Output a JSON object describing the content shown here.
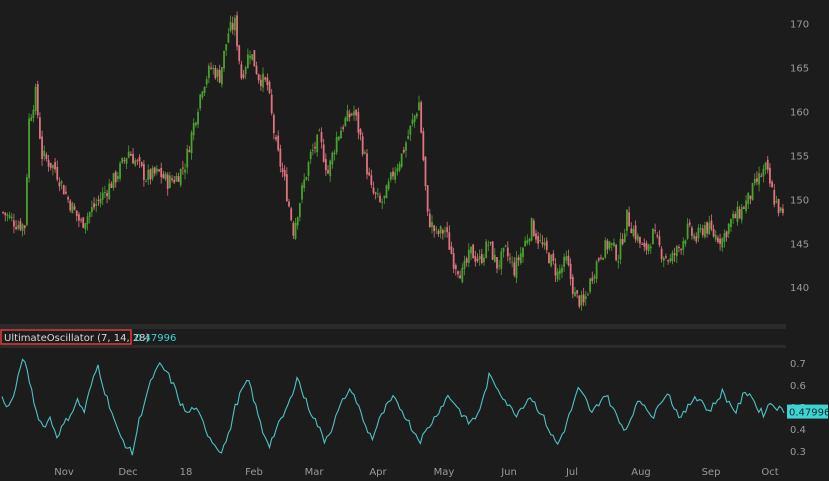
{
  "colors": {
    "frame": "#2b2b2b",
    "panel": "#1c1c1c",
    "grid": "#2a2a2a",
    "up": "#4aa12f",
    "down": "#e0737f",
    "oscillator": "#4fc2c4",
    "label_box": "#e03d3d",
    "tag_bg": "#3fd4d4"
  },
  "indicator": {
    "name": "UltimateOscillator (7, 14, 28)",
    "value": "0.47996",
    "last_tag": "0.47996"
  },
  "chart_data": [
    {
      "type": "candlestick",
      "ylim": [
        136.5,
        172
      ],
      "y_ticks": [
        "140",
        "145",
        "150",
        "155",
        "160",
        "165",
        "170"
      ],
      "x_ticks": [
        "Nov",
        "Dec",
        "18",
        "Feb",
        "Mar",
        "Apr",
        "May",
        "Jun",
        "Jul",
        "Aug",
        "Sep",
        "Oct"
      ],
      "bars": 260,
      "close_anchors": [
        [
          0,
          148.5
        ],
        [
          6,
          147.3
        ],
        [
          10,
          147
        ],
        [
          12,
          159
        ],
        [
          15,
          162
        ],
        [
          18,
          155
        ],
        [
          24,
          153.5
        ],
        [
          30,
          150
        ],
        [
          36,
          147.2
        ],
        [
          40,
          148.5
        ],
        [
          46,
          150.5
        ],
        [
          52,
          152.5
        ],
        [
          58,
          155.5
        ],
        [
          62,
          154
        ],
        [
          66,
          152.5
        ],
        [
          72,
          153
        ],
        [
          76,
          152
        ],
        [
          80,
          152.5
        ],
        [
          84,
          154
        ],
        [
          88,
          158.5
        ],
        [
          92,
          163
        ],
        [
          96,
          165
        ],
        [
          100,
          164
        ],
        [
          104,
          169
        ],
        [
          107,
          170
        ],
        [
          110,
          164
        ],
        [
          114,
          167
        ],
        [
          118,
          164
        ],
        [
          122,
          163
        ],
        [
          126,
          156
        ],
        [
          130,
          152
        ],
        [
          134,
          146.5
        ],
        [
          138,
          151
        ],
        [
          142,
          155
        ],
        [
          146,
          157
        ],
        [
          150,
          153
        ],
        [
          154,
          157
        ],
        [
          158,
          159
        ],
        [
          162,
          160
        ],
        [
          166,
          156
        ],
        [
          170,
          151
        ],
        [
          174,
          149.5
        ],
        [
          176,
          150
        ],
        [
          180,
          153
        ],
        [
          184,
          155
        ],
        [
          188,
          158
        ],
        [
          192,
          161
        ],
        [
          196,
          148
        ],
        [
          200,
          146
        ],
        [
          204,
          146.5
        ],
        [
          208,
          143
        ],
        [
          212,
          141.5
        ],
        [
          216,
          144
        ],
        [
          220,
          143
        ],
        [
          224,
          145
        ],
        [
          228,
          142.5
        ],
        [
          232,
          144
        ],
        [
          236,
          142
        ],
        [
          240,
          144.5
        ],
        [
          244,
          147
        ],
        [
          248,
          145
        ],
        [
          252,
          143.5
        ],
        [
          256,
          141.5
        ],
        [
          260,
          143
        ],
        [
          264,
          139
        ],
        [
          268,
          138
        ],
        [
          272,
          141.5
        ],
        [
          276,
          144
        ],
        [
          280,
          145
        ],
        [
          284,
          143.5
        ],
        [
          288,
          148
        ],
        [
          292,
          146
        ],
        [
          296,
          144
        ],
        [
          300,
          146
        ],
        [
          304,
          144
        ],
        [
          308,
          143
        ],
        [
          312,
          144.5
        ],
        [
          316,
          146.5
        ],
        [
          320,
          145.5
        ],
        [
          324,
          147
        ],
        [
          328,
          146
        ],
        [
          332,
          145.5
        ],
        [
          336,
          147.5
        ],
        [
          340,
          148.5
        ],
        [
          344,
          150
        ],
        [
          348,
          152
        ],
        [
          352,
          153.5
        ],
        [
          356,
          150
        ],
        [
          360,
          148
        ]
      ],
      "osc_anchors": [
        [
          0,
          0.54
        ],
        [
          3,
          0.5
        ],
        [
          6,
          0.58
        ],
        [
          9,
          0.73
        ],
        [
          12,
          0.62
        ],
        [
          15,
          0.48
        ],
        [
          18,
          0.41
        ],
        [
          21,
          0.45
        ],
        [
          24,
          0.37
        ],
        [
          27,
          0.42
        ],
        [
          30,
          0.47
        ],
        [
          33,
          0.53
        ],
        [
          36,
          0.48
        ],
        [
          39,
          0.6
        ],
        [
          42,
          0.69
        ],
        [
          45,
          0.57
        ],
        [
          48,
          0.48
        ],
        [
          51,
          0.38
        ],
        [
          54,
          0.33
        ],
        [
          57,
          0.29
        ],
        [
          60,
          0.44
        ],
        [
          63,
          0.55
        ],
        [
          66,
          0.64
        ],
        [
          69,
          0.69
        ],
        [
          72,
          0.66
        ],
        [
          75,
          0.6
        ],
        [
          78,
          0.52
        ],
        [
          81,
          0.47
        ],
        [
          84,
          0.5
        ],
        [
          87,
          0.45
        ],
        [
          90,
          0.38
        ],
        [
          93,
          0.33
        ],
        [
          96,
          0.3
        ],
        [
          99,
          0.37
        ],
        [
          102,
          0.5
        ],
        [
          105,
          0.58
        ],
        [
          108,
          0.62
        ],
        [
          111,
          0.5
        ],
        [
          114,
          0.39
        ],
        [
          117,
          0.33
        ],
        [
          120,
          0.4
        ],
        [
          123,
          0.46
        ],
        [
          126,
          0.53
        ],
        [
          129,
          0.64
        ],
        [
          132,
          0.55
        ],
        [
          135,
          0.48
        ],
        [
          138,
          0.42
        ],
        [
          141,
          0.35
        ],
        [
          144,
          0.4
        ],
        [
          147,
          0.48
        ],
        [
          150,
          0.55
        ],
        [
          153,
          0.58
        ],
        [
          156,
          0.5
        ],
        [
          159,
          0.41
        ],
        [
          162,
          0.36
        ],
        [
          165,
          0.44
        ],
        [
          168,
          0.5
        ],
        [
          171,
          0.54
        ],
        [
          174,
          0.5
        ],
        [
          177,
          0.45
        ],
        [
          180,
          0.39
        ],
        [
          183,
          0.35
        ],
        [
          186,
          0.4
        ],
        [
          189,
          0.45
        ],
        [
          192,
          0.5
        ],
        [
          195,
          0.55
        ],
        [
          198,
          0.52
        ],
        [
          201,
          0.47
        ],
        [
          204,
          0.43
        ],
        [
          207,
          0.45
        ],
        [
          210,
          0.52
        ],
        [
          213,
          0.64
        ],
        [
          216,
          0.6
        ],
        [
          219,
          0.55
        ],
        [
          222,
          0.5
        ],
        [
          225,
          0.47
        ],
        [
          228,
          0.51
        ],
        [
          231,
          0.55
        ],
        [
          234,
          0.5
        ],
        [
          237,
          0.45
        ],
        [
          240,
          0.38
        ],
        [
          243,
          0.33
        ],
        [
          246,
          0.4
        ],
        [
          249,
          0.49
        ],
        [
          252,
          0.58
        ],
        [
          255,
          0.54
        ],
        [
          258,
          0.47
        ],
        [
          261,
          0.52
        ],
        [
          264,
          0.56
        ],
        [
          267,
          0.5
        ],
        [
          270,
          0.43
        ],
        [
          273,
          0.4
        ],
        [
          276,
          0.48
        ],
        [
          279,
          0.53
        ],
        [
          282,
          0.5
        ],
        [
          285,
          0.45
        ],
        [
          288,
          0.53
        ],
        [
          291,
          0.57
        ],
        [
          294,
          0.5
        ],
        [
          297,
          0.45
        ],
        [
          300,
          0.5
        ],
        [
          303,
          0.55
        ],
        [
          306,
          0.53
        ],
        [
          309,
          0.48
        ],
        [
          312,
          0.52
        ],
        [
          315,
          0.57
        ],
        [
          318,
          0.52
        ],
        [
          321,
          0.48
        ],
        [
          324,
          0.55
        ],
        [
          327,
          0.57
        ],
        [
          330,
          0.5
        ],
        [
          333,
          0.47
        ],
        [
          336,
          0.52
        ],
        [
          339,
          0.5
        ],
        [
          342,
          0.48
        ]
      ],
      "osc_ylim": [
        0.26,
        0.76
      ],
      "osc_y_ticks": [
        "0.3",
        "0.4",
        "0.5",
        "0.6",
        "0.7"
      ]
    }
  ]
}
